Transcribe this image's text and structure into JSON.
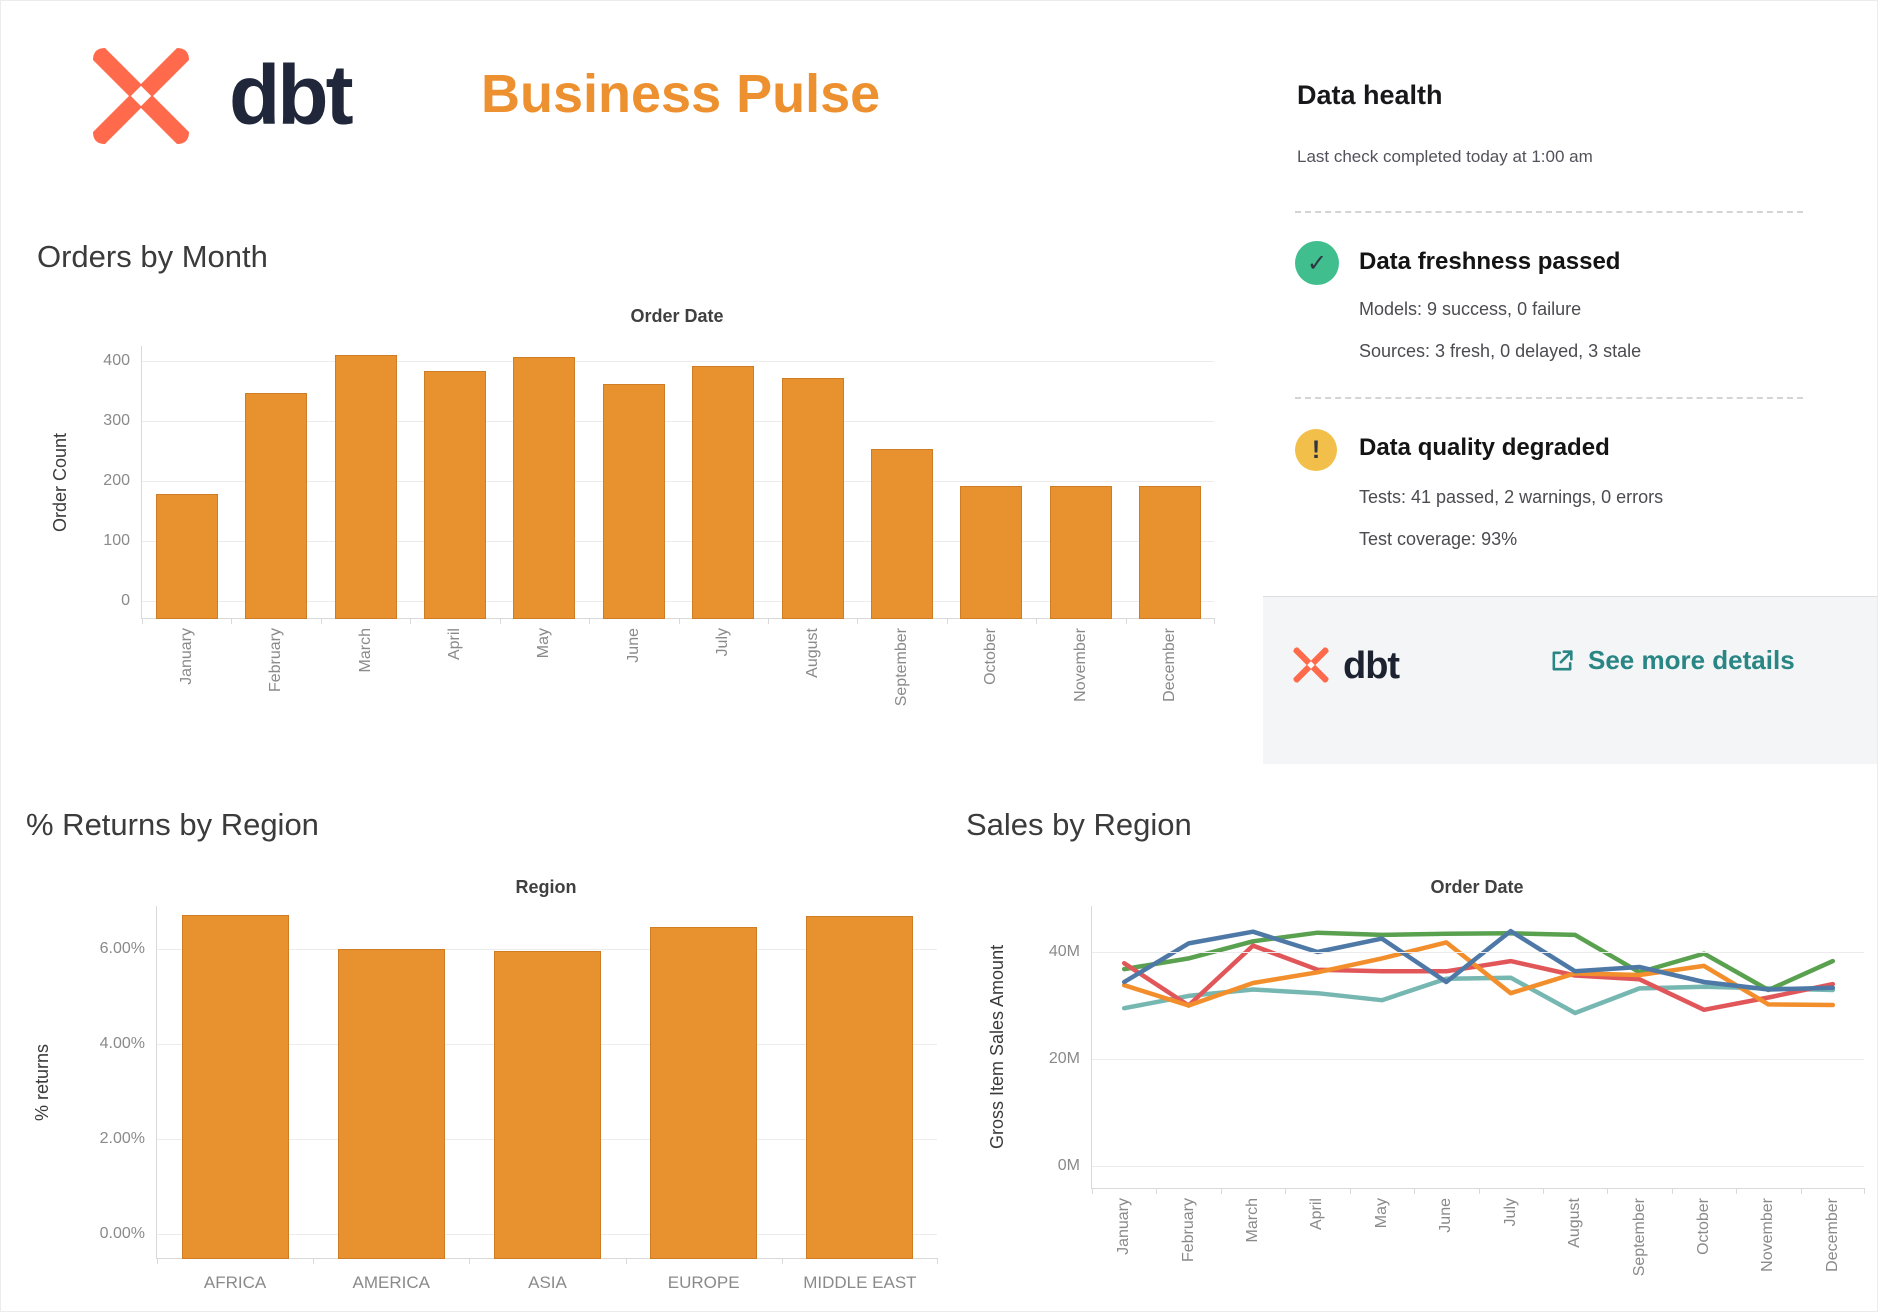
{
  "header": {
    "brand": "dbt",
    "title": "Business Pulse",
    "title_color": "#ED9130",
    "logo_color": "#ff6a4c"
  },
  "data_health": {
    "title": "Data health",
    "subtitle": "Last check completed today at 1:00 am",
    "freshness": {
      "title": "Data freshness passed",
      "status": "passed",
      "icon_color": "#40be8d",
      "icon_glyph": "✓",
      "lines": [
        "Models: 9 success, 0 failure",
        "Sources: 3 fresh, 0 delayed, 3 stale"
      ]
    },
    "quality": {
      "title": "Data quality degraded",
      "status": "warning",
      "icon_color": "#f2c04a",
      "icon_glyph": "!",
      "lines": [
        "Tests: 41 passed, 2 warnings, 0 errors",
        "Test coverage: 93%"
      ]
    },
    "footer": {
      "brand": "dbt",
      "link_label": "See more details",
      "link_color": "#2a8585"
    }
  },
  "chart_data": [
    {
      "id": "orders_by_month",
      "type": "bar",
      "title": "Orders by Month",
      "subtitle": "Order Date",
      "ylabel": "Order Count",
      "categories": [
        "January",
        "February",
        "March",
        "April",
        "May",
        "June",
        "July",
        "August",
        "September",
        "October",
        "November",
        "December"
      ],
      "values": [
        178,
        347,
        410,
        383,
        407,
        362,
        391,
        371,
        253,
        191,
        191,
        191
      ],
      "yticks": [
        {
          "v": 0,
          "label": "0"
        },
        {
          "v": 100,
          "label": "100"
        },
        {
          "v": 200,
          "label": "200"
        },
        {
          "v": 300,
          "label": "300"
        },
        {
          "v": 400,
          "label": "400"
        }
      ],
      "ylim": [
        0,
        430
      ],
      "bar_color": "#e8912f",
      "bar_border": "#cf7d24",
      "grid": true,
      "x_labels_rotated": true
    },
    {
      "id": "returns_by_region",
      "type": "bar",
      "title": "% Returns by Region",
      "subtitle": "Region",
      "ylabel": "% returns",
      "categories": [
        "AFRICA",
        "AMERICA",
        "ASIA",
        "EUROPE",
        "MIDDLE EAST"
      ],
      "values": [
        6.72,
        6.0,
        5.95,
        6.47,
        6.7
      ],
      "yticks": [
        {
          "v": 0,
          "label": "0.00%"
        },
        {
          "v": 2,
          "label": "2.00%"
        },
        {
          "v": 4,
          "label": "4.00%"
        },
        {
          "v": 6,
          "label": "6.00%"
        }
      ],
      "ylim": [
        0,
        7.4
      ],
      "bar_color": "#e8912f",
      "bar_border": "#cf7d24",
      "grid": true,
      "x_labels_rotated": false
    },
    {
      "id": "sales_by_region",
      "type": "line",
      "title": "Sales by Region",
      "subtitle": "Order Date",
      "ylabel": "Gross Item Sales Amount",
      "categories": [
        "January",
        "February",
        "March",
        "April",
        "May",
        "June",
        "July",
        "August",
        "September",
        "October",
        "November",
        "December"
      ],
      "series": [
        {
          "name": "teal",
          "color": "#76b7b2",
          "values": [
            29.5,
            31.8,
            33.0,
            32.3,
            31.0,
            35.0,
            35.2,
            28.6,
            33.2,
            33.5,
            33.2,
            32.9
          ]
        },
        {
          "name": "green",
          "color": "#59a14f",
          "values": [
            36.8,
            38.8,
            42.0,
            43.6,
            43.2,
            43.4,
            43.5,
            43.2,
            36.2,
            39.7,
            32.9,
            38.3
          ]
        },
        {
          "name": "red",
          "color": "#e15759",
          "values": [
            37.9,
            30.0,
            41.2,
            36.7,
            36.4,
            36.4,
            38.3,
            35.6,
            34.9,
            29.2,
            31.5,
            34.0
          ]
        },
        {
          "name": "orange",
          "color": "#f28e2b",
          "values": [
            33.8,
            30.0,
            34.2,
            36.2,
            38.8,
            41.8,
            32.3,
            36.0,
            35.7,
            37.4,
            30.2,
            30.1
          ]
        },
        {
          "name": "blue",
          "color": "#4e79a7",
          "values": [
            34.4,
            41.6,
            43.8,
            40.0,
            42.5,
            34.4,
            43.9,
            36.4,
            37.2,
            34.4,
            33.0,
            33.3
          ]
        }
      ],
      "yticks": [
        {
          "v": 0,
          "label": "0M"
        },
        {
          "v": 20,
          "label": "20M"
        },
        {
          "v": 40,
          "label": "40M"
        }
      ],
      "ylim": [
        0,
        48
      ],
      "grid": true,
      "legend": "none",
      "x_labels_rotated": true
    }
  ]
}
